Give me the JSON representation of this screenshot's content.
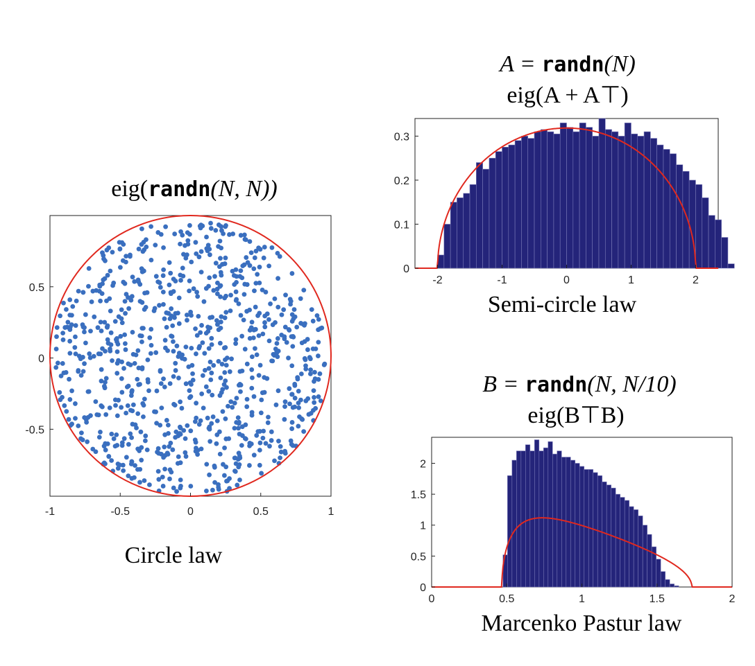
{
  "colors": {
    "scatter": "#3a6fbf",
    "bar_fill": "#24247a",
    "bar_edge": "#7a7ab8",
    "curve": "#e0281e",
    "axis": "#222222"
  },
  "chart_data": [
    {
      "type": "scatter",
      "title": "eig(randn(N, N))",
      "title_parts": {
        "prefix": "eig(",
        "code": "randn",
        "args": "(N, N))"
      },
      "caption": "Circle law",
      "xlim": [
        -1,
        1
      ],
      "ylim": [
        -0.97,
        1.0
      ],
      "xticks": [
        -1,
        -0.5,
        0,
        0.5,
        1
      ],
      "xtick_labels": [
        "-1",
        "-0.5",
        "0",
        "0.5",
        "1"
      ],
      "yticks": [
        0.5,
        0,
        -0.5
      ],
      "ytick_labels": [
        "0.5",
        "0",
        "-0.5"
      ],
      "n_points": 900,
      "distribution": "uniform on unit disk",
      "reference_curve": "unit circle",
      "grid": false,
      "legend": "none"
    },
    {
      "type": "bar",
      "title_line1": "A = randn(N)",
      "title_line1_parts": {
        "prefix": "A = ",
        "code": "randn",
        "args": "(N)"
      },
      "title_line2": "eig(A + A⊤)",
      "caption": "Semi-circle law",
      "xlim": [
        -2.35,
        2.35
      ],
      "ylim": [
        0,
        0.34
      ],
      "xticks": [
        -2,
        -1,
        0,
        1,
        2
      ],
      "xtick_labels": [
        "-2",
        "-1",
        "0",
        "1",
        "2"
      ],
      "yticks": [
        0,
        0.1,
        0.2,
        0.3
      ],
      "ytick_labels": [
        "0",
        "0.1",
        "0.2",
        "0.3"
      ],
      "bin_edges_start": -2.0,
      "bin_width": 0.1,
      "values": [
        0.03,
        0.1,
        0.15,
        0.16,
        0.17,
        0.19,
        0.24,
        0.225,
        0.25,
        0.265,
        0.275,
        0.28,
        0.29,
        0.3,
        0.295,
        0.31,
        0.315,
        0.31,
        0.305,
        0.33,
        0.32,
        0.31,
        0.33,
        0.32,
        0.3,
        0.34,
        0.315,
        0.31,
        0.3,
        0.33,
        0.305,
        0.3,
        0.31,
        0.295,
        0.28,
        0.27,
        0.26,
        0.235,
        0.22,
        0.2,
        0.19,
        0.16,
        0.12,
        0.11,
        0.07,
        0.01
      ],
      "reference_curve": "semicircle density sqrt(4 - x^2) / (2π)",
      "grid": false,
      "legend": "none"
    },
    {
      "type": "bar",
      "title_line1": "B = randn(N, N/10)",
      "title_line1_parts": {
        "prefix": "B = ",
        "code": "randn",
        "args": "(N, N/10)"
      },
      "title_line2": "eig(B⊤B)",
      "caption": "Marcenko Pastur law",
      "xlim": [
        0,
        2
      ],
      "ylim": [
        0,
        2.42
      ],
      "xticks": [
        0,
        0.5,
        1,
        1.5,
        2
      ],
      "xtick_labels": [
        "0",
        "0.5",
        "1",
        "1.5",
        "2"
      ],
      "yticks": [
        0,
        0.5,
        1,
        1.5,
        2
      ],
      "ytick_labels": [
        "0",
        "0.5",
        "1",
        "1.5",
        "2"
      ],
      "bin_edges_start": 0.475,
      "bin_width": 0.03,
      "values": [
        0.52,
        1.8,
        2.05,
        2.2,
        2.2,
        2.3,
        2.2,
        2.38,
        2.2,
        2.25,
        2.35,
        2.15,
        2.2,
        2.1,
        2.1,
        2.05,
        2.0,
        1.95,
        1.9,
        1.9,
        1.85,
        1.8,
        1.7,
        1.65,
        1.6,
        1.5,
        1.45,
        1.4,
        1.3,
        1.25,
        1.15,
        1.0,
        0.85,
        0.65,
        0.45,
        0.25,
        0.12,
        0.05,
        0.02
      ],
      "reference_curve": "Marcenko-Pastur density, ratio 0.1",
      "grid": false,
      "legend": "none"
    }
  ]
}
